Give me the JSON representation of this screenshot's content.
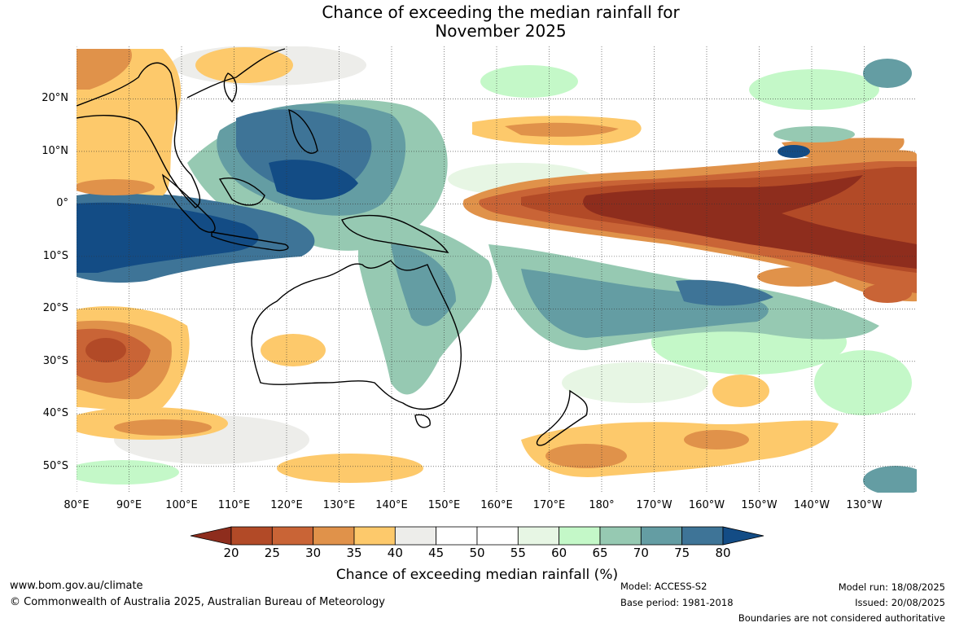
{
  "title": {
    "line1": "Chance of exceeding the median rainfall for",
    "line2": "November 2025"
  },
  "map": {
    "lat_labels": [
      "20°N",
      "10°N",
      "0°",
      "10°S",
      "20°S",
      "30°S",
      "40°S",
      "50°S"
    ],
    "lon_labels": [
      "80°E",
      "90°E",
      "100°E",
      "110°E",
      "120°E",
      "130°E",
      "140°E",
      "150°E",
      "160°E",
      "170°E",
      "180°",
      "170°W",
      "160°W",
      "150°W",
      "140°W",
      "130°W"
    ],
    "region": "Australia and Pacific",
    "lon_range": [
      80,
      240
    ],
    "lat_range": [
      -55,
      30
    ]
  },
  "colorbar": {
    "ticks": [
      "20",
      "25",
      "30",
      "35",
      "40",
      "45",
      "50",
      "55",
      "60",
      "65",
      "70",
      "75",
      "80"
    ],
    "colors": [
      "#8e2d1d",
      "#b24a27",
      "#c96436",
      "#e0924a",
      "#fdc96b",
      "#ededea",
      "#ffffff",
      "#ffffff",
      "#e7f6e4",
      "#c4f8c8",
      "#96c9b2",
      "#649da3",
      "#3e7497",
      "#134c85"
    ],
    "label": "Chance of exceeding median rainfall (%)"
  },
  "footer": {
    "website": "www.bom.gov.au/climate",
    "copyright": "© Commonwealth of Australia 2025, Australian Bureau of Meteorology",
    "model": "Model: ACCESS-S2",
    "base_period": "Base period: 1981-2018",
    "model_run": "Model run: 18/08/2025",
    "issued": "Issued: 20/08/2025",
    "disclaimer": "Boundaries are not considered authoritative"
  }
}
